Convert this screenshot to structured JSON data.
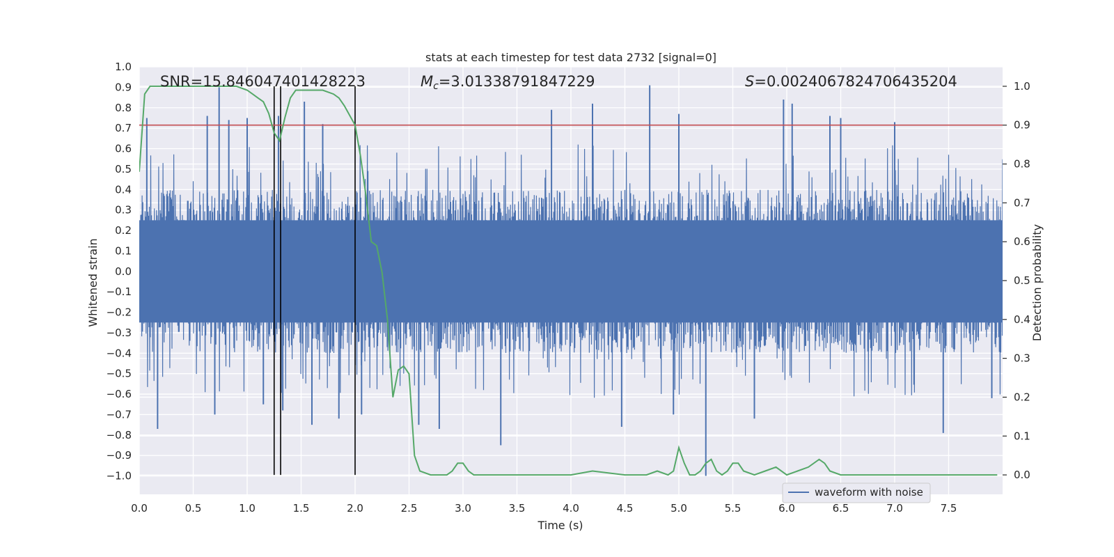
{
  "chart_data": {
    "type": "line",
    "title": "stats at each timestep for test data 2732 [signal=0]",
    "xlabel": "Time (s)",
    "ylabel": "Whitened strain",
    "y2label": "Detection probability",
    "xlim": [
      0,
      8.0
    ],
    "ylim": [
      -1.09,
      1.0
    ],
    "y2lim": [
      -0.05,
      1.05
    ],
    "x_ticks": [
      0.0,
      0.5,
      1.0,
      1.5,
      2.0,
      2.5,
      3.0,
      3.5,
      4.0,
      4.5,
      5.0,
      5.5,
      6.0,
      6.5,
      7.0,
      7.5
    ],
    "x_tick_labels": [
      "0.0",
      "0.5",
      "1.0",
      "1.5",
      "2.0",
      "2.5",
      "3.0",
      "3.5",
      "4.0",
      "4.5",
      "5.0",
      "5.5",
      "6.0",
      "6.5",
      "7.0",
      "7.5"
    ],
    "y_ticks": [
      1.0,
      0.9,
      0.8,
      0.7,
      0.6,
      0.5,
      0.4,
      0.3,
      0.2,
      0.1,
      0.0,
      -0.1,
      -0.2,
      -0.3,
      -0.4,
      -0.5,
      -0.6,
      -0.7,
      -0.8,
      -0.9,
      -1.0
    ],
    "y_tick_labels": [
      "1.0",
      "0.9",
      "0.8",
      "0.7",
      "0.6",
      "0.5",
      "0.4",
      "0.3",
      "0.2",
      "0.1",
      "0.0",
      "−0.1",
      "−0.2",
      "−0.3",
      "−0.4",
      "−0.5",
      "−0.6",
      "−0.7",
      "−0.8",
      "−0.9",
      "−1.0"
    ],
    "y2_ticks": [
      1.0,
      0.9,
      0.8,
      0.7,
      0.6,
      0.5,
      0.4,
      0.3,
      0.2,
      0.1,
      0.0
    ],
    "y2_tick_labels": [
      "1.0",
      "0.9",
      "0.8",
      "0.7",
      "0.6",
      "0.5",
      "0.4",
      "0.3",
      "0.2",
      "0.1",
      "0.0"
    ],
    "grid": true,
    "legend": {
      "placement": "lower-right",
      "entries": [
        "waveform with noise"
      ]
    },
    "annotations": {
      "snr": "SNR=15.846047401428223",
      "mc_symbol": "M",
      "mc_sub": "c",
      "mc_value": "=3.01338791847229",
      "s_symbol": "S",
      "s_value": "=0.0024067824706435204"
    },
    "threshold_probability": 0.9,
    "vertical_markers_s": [
      1.25,
      1.31,
      2.0
    ],
    "series": [
      {
        "name": "waveform with noise",
        "axis": "left",
        "style": "dense noise, envelope approx ±0.45 with spikes to ±0.9",
        "peak_spikes": [
          [
            0.07,
            0.75
          ],
          [
            0.17,
            -0.77
          ],
          [
            0.63,
            0.76
          ],
          [
            0.7,
            -0.7
          ],
          [
            0.74,
            0.9
          ],
          [
            0.83,
            0.74
          ],
          [
            1.0,
            0.75
          ],
          [
            1.15,
            -0.65
          ],
          [
            1.29,
            0.76
          ],
          [
            1.33,
            -0.68
          ],
          [
            1.53,
            0.83
          ],
          [
            1.6,
            -0.75
          ],
          [
            1.7,
            0.72
          ],
          [
            1.85,
            -0.72
          ],
          [
            2.06,
            -0.7
          ],
          [
            2.59,
            -0.75
          ],
          [
            2.78,
            -0.77
          ],
          [
            3.35,
            -0.85
          ],
          [
            3.82,
            0.79
          ],
          [
            4.2,
            0.82
          ],
          [
            4.47,
            -0.76
          ],
          [
            4.73,
            0.91
          ],
          [
            4.95,
            -0.7
          ],
          [
            5.0,
            0.77
          ],
          [
            5.25,
            -1.0
          ],
          [
            5.7,
            -0.72
          ],
          [
            5.97,
            0.84
          ],
          [
            6.05,
            0.82
          ],
          [
            6.4,
            0.76
          ],
          [
            6.5,
            0.75
          ],
          [
            7.0,
            0.73
          ],
          [
            7.45,
            -0.79
          ],
          [
            7.9,
            -0.62
          ]
        ]
      },
      {
        "name": "",
        "axis": "right",
        "color": "#55a868",
        "x": [
          0.0,
          0.05,
          0.1,
          0.15,
          0.2,
          0.3,
          0.5,
          0.7,
          0.9,
          1.0,
          1.05,
          1.1,
          1.15,
          1.2,
          1.25,
          1.3,
          1.35,
          1.4,
          1.45,
          1.5,
          1.6,
          1.7,
          1.8,
          1.85,
          1.9,
          2.0,
          2.05,
          2.1,
          2.15,
          2.2,
          2.25,
          2.3,
          2.35,
          2.4,
          2.45,
          2.5,
          2.55,
          2.6,
          2.7,
          2.8,
          2.85,
          2.9,
          2.95,
          3.0,
          3.05,
          3.1,
          3.2,
          3.4,
          3.7,
          4.0,
          4.2,
          4.5,
          4.7,
          4.8,
          4.9,
          4.95,
          5.0,
          5.05,
          5.1,
          5.15,
          5.2,
          5.25,
          5.3,
          5.35,
          5.4,
          5.45,
          5.5,
          5.55,
          5.6,
          5.7,
          5.8,
          5.9,
          6.0,
          6.1,
          6.2,
          6.3,
          6.35,
          6.4,
          6.5,
          6.6,
          6.7,
          7.0,
          7.5,
          7.95
        ],
        "values": [
          0.78,
          0.98,
          1.0,
          1.0,
          1.0,
          1.0,
          1.0,
          1.0,
          1.0,
          0.99,
          0.98,
          0.97,
          0.96,
          0.93,
          0.88,
          0.86,
          0.92,
          0.97,
          0.99,
          0.99,
          0.99,
          0.99,
          0.98,
          0.97,
          0.95,
          0.9,
          0.82,
          0.72,
          0.6,
          0.59,
          0.52,
          0.4,
          0.2,
          0.27,
          0.28,
          0.26,
          0.05,
          0.01,
          0.0,
          0.0,
          0.0,
          0.01,
          0.03,
          0.03,
          0.01,
          0.0,
          0.0,
          0.0,
          0.0,
          0.0,
          0.01,
          0.0,
          0.0,
          0.01,
          0.0,
          0.01,
          0.07,
          0.03,
          0.0,
          0.0,
          0.01,
          0.03,
          0.04,
          0.01,
          0.0,
          0.01,
          0.03,
          0.03,
          0.01,
          0.0,
          0.01,
          0.02,
          0.0,
          0.01,
          0.02,
          0.04,
          0.03,
          0.01,
          0.0,
          0.0,
          0.0,
          0.0,
          0.0,
          0.0
        ]
      }
    ]
  },
  "colors": {
    "background": "#eaeaf2",
    "grid": "#ffffff",
    "waveform": "#4c72b0",
    "probability": "#55a868",
    "threshold": "#c44e52",
    "markers": "#000000",
    "legend_frame": "#cccccc"
  }
}
